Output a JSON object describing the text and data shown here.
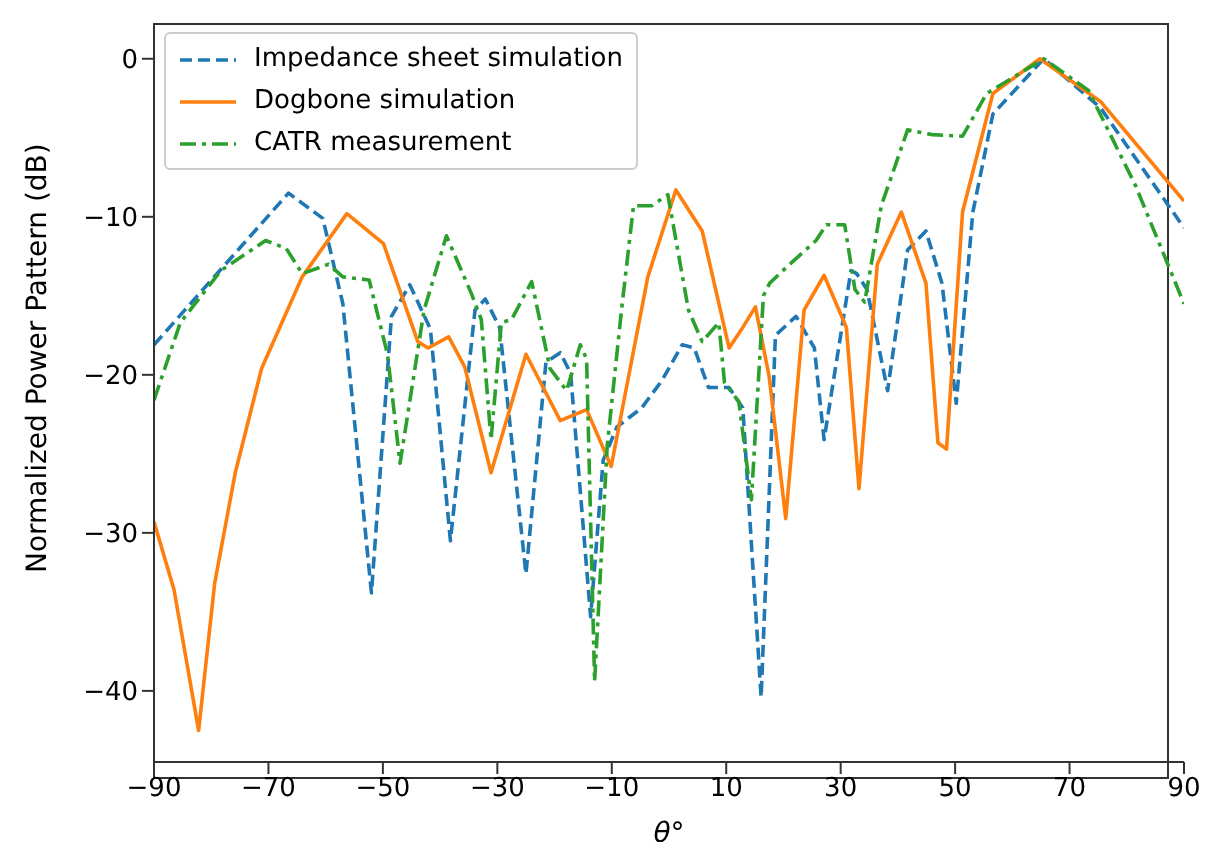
{
  "chart_data": {
    "type": "line",
    "xlabel": "θ°",
    "ylabel": "Normalized Power Pattern (dB)",
    "xlim": [
      -90,
      90
    ],
    "xticks": [
      -90,
      -70,
      -50,
      -30,
      -10,
      10,
      30,
      50,
      70,
      90
    ],
    "ylim": [
      -44.5,
      2.2
    ],
    "yticks": [
      -40,
      -30,
      -20,
      -10,
      0
    ],
    "grid": false,
    "legend": "top left",
    "marker": "none",
    "series": [
      {
        "name": "Impedance sheet simulation",
        "color": "#1f77b4",
        "line_style": "dashed",
        "x": [
          -90,
          -66.5,
          -60.5,
          -57,
          -52,
          -48.5,
          -45.3,
          -41.7,
          -38.2,
          -33.9,
          -32.1,
          -29.6,
          -25,
          -21.5,
          -19,
          -17.2,
          -13.7,
          -11.5,
          -9.1,
          -4.8,
          -1.3,
          2.3,
          4.4,
          6.9,
          10.5,
          12.9,
          16.1,
          18.6,
          22.2,
          25.4,
          27.1,
          31.8,
          32.8,
          34.6,
          38.2,
          41.7,
          44.9,
          47.7,
          50.2,
          53.1,
          56.6,
          65.5,
          75.4,
          90
        ],
        "values": [
          -18.1,
          -8.5,
          -10.1,
          -15.5,
          -33.8,
          -16.3,
          -14.3,
          -17.1,
          -30.5,
          -15.9,
          -15.2,
          -17,
          -32.6,
          -19.2,
          -18.6,
          -19.9,
          -35.3,
          -25.4,
          -23.3,
          -22.1,
          -20.4,
          -18.1,
          -18.3,
          -20.8,
          -20.8,
          -22.1,
          -40.4,
          -17.5,
          -16.3,
          -18.3,
          -24.1,
          -13.4,
          -13.6,
          -14.6,
          -21,
          -12.1,
          -10.9,
          -14.2,
          -21.8,
          -9.7,
          -3.5,
          0,
          -3.1,
          -10.7
        ]
      },
      {
        "name": "Dogbone simulation",
        "color": "#ff7f0e",
        "line_style": "solid",
        "x": [
          -90,
          -86.5,
          -82.2,
          -79.4,
          -75.8,
          -71.2,
          -64.1,
          -56.3,
          -49.9,
          -43.9,
          -42.1,
          -38.5,
          -35.7,
          -31.1,
          -25,
          -19,
          -14.4,
          -10.1,
          -3.7,
          1.2,
          5.8,
          10.5,
          12.9,
          15.1,
          17.5,
          20.4,
          23.6,
          27.1,
          31,
          33.2,
          36.4,
          40.6,
          44.9,
          47,
          48.5,
          51.3,
          56.6,
          64.8,
          75.4,
          90
        ],
        "values": [
          -29.3,
          -33.6,
          -42.5,
          -33.2,
          -26.2,
          -19.6,
          -13.8,
          -9.8,
          -11.7,
          -17.9,
          -18.3,
          -17.6,
          -19.5,
          -26.2,
          -18.7,
          -22.9,
          -22.2,
          -25.8,
          -13.8,
          -8.3,
          -10.9,
          -18.3,
          -17,
          -15.7,
          -20.1,
          -29.1,
          -15.9,
          -13.7,
          -17,
          -27.2,
          -13,
          -9.7,
          -14.2,
          -24.3,
          -24.7,
          -9.7,
          -2.2,
          0,
          -2.7,
          -9
        ]
      },
      {
        "name": "CATR measurement",
        "color": "#2ca02c",
        "line_style": "dashdot",
        "x": [
          -90,
          -85.4,
          -78.3,
          -70.5,
          -66.9,
          -64.1,
          -59.5,
          -57,
          -52.4,
          -49.2,
          -47,
          -42.8,
          -38.9,
          -34.6,
          -32.8,
          -31.1,
          -29.3,
          -27.5,
          -24,
          -20.8,
          -17.9,
          -15.5,
          -14.4,
          -13,
          -10.8,
          -8.3,
          -6.2,
          -3,
          -0.2,
          3.4,
          5.8,
          8.7,
          9.7,
          12.2,
          14.4,
          16.5,
          17.6,
          21.1,
          25.7,
          27.5,
          30.7,
          32.5,
          34.2,
          37.1,
          41.7,
          46,
          51.3,
          55.5,
          65.5,
          73.3,
          81.5,
          90
        ],
        "values": [
          -21.6,
          -16.7,
          -13.4,
          -11.5,
          -12,
          -13.6,
          -13,
          -13.8,
          -14,
          -18.7,
          -25.6,
          -15.9,
          -11.2,
          -14.8,
          -16.5,
          -24.1,
          -16.7,
          -16.5,
          -14.1,
          -19.6,
          -21,
          -18.1,
          -19,
          -39.4,
          -24.5,
          -15.9,
          -9.3,
          -9.3,
          -8.6,
          -15.9,
          -17.9,
          -16.7,
          -20.5,
          -21.7,
          -27.9,
          -15,
          -14.2,
          -13,
          -11.5,
          -10.5,
          -10.5,
          -14.6,
          -15.4,
          -9.3,
          -4.5,
          -4.8,
          -4.9,
          -2.2,
          0,
          -2,
          -8,
          -15.5
        ]
      }
    ]
  }
}
